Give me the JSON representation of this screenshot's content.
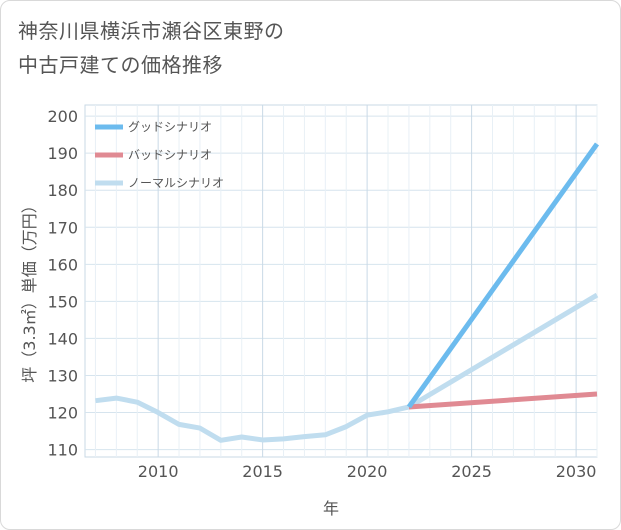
{
  "title_lines": [
    "神奈川県横浜市瀬谷区東野の",
    "中古戸建ての価格推移"
  ],
  "chart_data": {
    "type": "line",
    "title": "神奈川県横浜市瀬谷区東野の中古戸建ての価格推移",
    "xlabel": "年",
    "ylabel": "坪（3.3㎡）単価（万円）",
    "xlim": [
      2006.5,
      2031
    ],
    "ylim": [
      108,
      203
    ],
    "xticks": [
      2010,
      2015,
      2020,
      2025,
      2030
    ],
    "yticks": [
      110,
      120,
      130,
      140,
      150,
      160,
      170,
      180,
      190,
      200
    ],
    "grid": true,
    "legend_position": "top-left",
    "series": [
      {
        "name": "グッドシナリオ",
        "color": "#6cbbee",
        "x": [
          2022,
          2031
        ],
        "values": [
          121.5,
          192.5
        ]
      },
      {
        "name": "バッドシナリオ",
        "color": "#e08a93",
        "x": [
          2022,
          2031
        ],
        "values": [
          121.5,
          125.0
        ]
      },
      {
        "name": "ノーマルシナリオ",
        "color": "#c0ddef",
        "x": [
          2007,
          2008,
          2009,
          2010,
          2011,
          2012,
          2013,
          2014,
          2015,
          2016,
          2017,
          2018,
          2019,
          2020,
          2021,
          2022,
          2031
        ],
        "values": [
          123.2,
          123.9,
          122.8,
          120.0,
          116.8,
          115.8,
          112.5,
          113.4,
          112.6,
          112.9,
          113.5,
          114.0,
          116.2,
          119.3,
          120.2,
          121.5,
          151.7
        ]
      }
    ]
  }
}
